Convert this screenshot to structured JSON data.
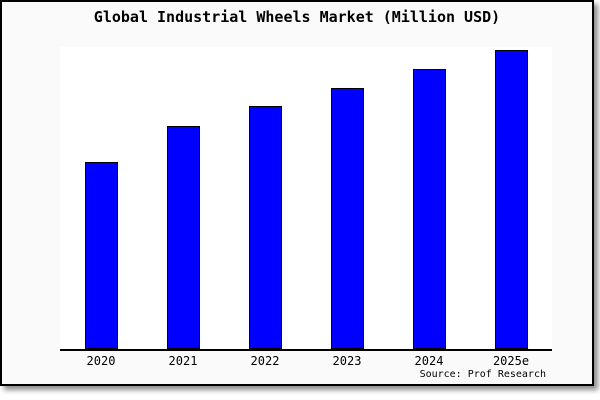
{
  "chart": {
    "title": "Global Industrial Wheels Market (Million USD)",
    "source": "Source: Prof Research"
  },
  "chart_data": {
    "type": "bar",
    "title": "Global Industrial Wheels Market (Million USD)",
    "categories": [
      "2020",
      "2021",
      "2022",
      "2023",
      "2024",
      "2025e"
    ],
    "values": [
      62,
      74,
      80.5,
      86.5,
      92.7,
      99
    ],
    "values_note": "relative bar heights as % of plot area; the chart displays no y-axis scale or value labels",
    "xlabel": "",
    "ylabel": "",
    "ylim": [
      0,
      100
    ],
    "grid": false,
    "legend": false,
    "y_axis_visible": false,
    "annotation": "Source: Prof Research",
    "bar_color": "#0000ff",
    "bar_border_color": "#000000",
    "plot_background": "#ffffff",
    "frame_background": "#fafafa",
    "frame_border_color": "#000000",
    "text_color": "#000000"
  }
}
